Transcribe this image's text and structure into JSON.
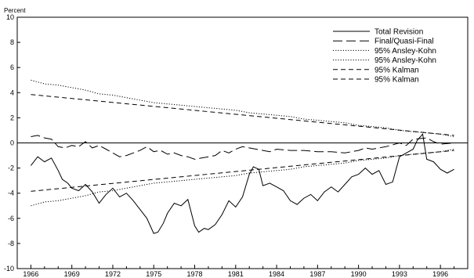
{
  "chart_data": {
    "type": "line",
    "ylabel": "Percent",
    "ylim": [
      -10,
      10
    ],
    "y_ticks": [
      10,
      8,
      6,
      4,
      2,
      0,
      -2,
      -4,
      -6,
      -8,
      -10
    ],
    "xlim": [
      1965,
      1998
    ],
    "x_tick_labels": [
      "1966",
      "1969",
      "1972",
      "1975",
      "1978",
      "1981",
      "1984",
      "1987",
      "1990",
      "1993",
      "1996"
    ],
    "x_tick_values": [
      1966,
      1969,
      1972,
      1975,
      1978,
      1981,
      1984,
      1987,
      1990,
      1993,
      1996
    ],
    "zero_line": true,
    "grid": false,
    "legend_position": "top-right",
    "series": [
      {
        "name": "Total Revision",
        "style": "solid",
        "points": [
          [
            1966,
            -1.8
          ],
          [
            1966.5,
            -1.1
          ],
          [
            1967,
            -1.5
          ],
          [
            1967.5,
            -1.2
          ],
          [
            1968,
            -2.2
          ],
          [
            1968.3,
            -2.9
          ],
          [
            1968.7,
            -3.2
          ],
          [
            1969,
            -3.6
          ],
          [
            1969.5,
            -3.8
          ],
          [
            1970,
            -3.3
          ],
          [
            1970.5,
            -3.9
          ],
          [
            1971,
            -4.8
          ],
          [
            1971.5,
            -4.1
          ],
          [
            1972,
            -3.6
          ],
          [
            1972.5,
            -4.3
          ],
          [
            1973,
            -4.0
          ],
          [
            1973.5,
            -4.6
          ],
          [
            1974,
            -5.3
          ],
          [
            1974.5,
            -6.0
          ],
          [
            1975,
            -7.2
          ],
          [
            1975.3,
            -7.1
          ],
          [
            1975.7,
            -6.4
          ],
          [
            1976,
            -5.6
          ],
          [
            1976.5,
            -4.8
          ],
          [
            1977,
            -5.0
          ],
          [
            1977.5,
            -4.5
          ],
          [
            1978,
            -6.6
          ],
          [
            1978.3,
            -7.1
          ],
          [
            1978.7,
            -6.8
          ],
          [
            1979,
            -6.9
          ],
          [
            1979.5,
            -6.5
          ],
          [
            1980,
            -5.7
          ],
          [
            1980.5,
            -4.6
          ],
          [
            1981,
            -5.1
          ],
          [
            1981.5,
            -4.3
          ],
          [
            1982,
            -2.5
          ],
          [
            1982.3,
            -1.9
          ],
          [
            1982.7,
            -2.1
          ],
          [
            1983,
            -3.4
          ],
          [
            1983.5,
            -3.2
          ],
          [
            1984,
            -3.5
          ],
          [
            1984.5,
            -3.8
          ],
          [
            1985,
            -4.6
          ],
          [
            1985.5,
            -4.9
          ],
          [
            1986,
            -4.4
          ],
          [
            1986.5,
            -4.1
          ],
          [
            1987,
            -4.6
          ],
          [
            1987.5,
            -3.9
          ],
          [
            1988,
            -3.5
          ],
          [
            1988.5,
            -3.9
          ],
          [
            1989,
            -3.3
          ],
          [
            1989.5,
            -2.7
          ],
          [
            1990,
            -2.5
          ],
          [
            1990.5,
            -2.0
          ],
          [
            1991,
            -2.5
          ],
          [
            1991.5,
            -2.2
          ],
          [
            1992,
            -3.3
          ],
          [
            1992.5,
            -3.1
          ],
          [
            1993,
            -1.1
          ],
          [
            1993.5,
            -0.8
          ],
          [
            1994,
            -0.5
          ],
          [
            1994.3,
            0.2
          ],
          [
            1994.7,
            0.7
          ],
          [
            1995,
            -1.3
          ],
          [
            1995.5,
            -1.5
          ],
          [
            1996,
            -2.1
          ],
          [
            1996.5,
            -2.4
          ],
          [
            1997,
            -2.1
          ]
        ]
      },
      {
        "name": "Final/Quasi-Final",
        "style": "long-dash",
        "points": [
          [
            1966,
            0.5
          ],
          [
            1966.5,
            0.6
          ],
          [
            1967,
            0.4
          ],
          [
            1967.5,
            0.3
          ],
          [
            1968,
            -0.3
          ],
          [
            1968.5,
            -0.4
          ],
          [
            1969,
            -0.2
          ],
          [
            1969.5,
            -0.3
          ],
          [
            1970,
            0.1
          ],
          [
            1970.5,
            -0.4
          ],
          [
            1971,
            -0.2
          ],
          [
            1971.5,
            -0.5
          ],
          [
            1972,
            -0.8
          ],
          [
            1972.5,
            -1.1
          ],
          [
            1973,
            -1.0
          ],
          [
            1973.5,
            -0.8
          ],
          [
            1974,
            -0.6
          ],
          [
            1974.5,
            -0.3
          ],
          [
            1975,
            -0.7
          ],
          [
            1975.5,
            -0.6
          ],
          [
            1976,
            -0.9
          ],
          [
            1976.5,
            -0.8
          ],
          [
            1977,
            -1.0
          ],
          [
            1977.5,
            -1.1
          ],
          [
            1978,
            -1.3
          ],
          [
            1978.5,
            -1.2
          ],
          [
            1979,
            -1.1
          ],
          [
            1979.5,
            -1.0
          ],
          [
            1980,
            -0.6
          ],
          [
            1980.5,
            -0.8
          ],
          [
            1981,
            -0.5
          ],
          [
            1981.5,
            -0.3
          ],
          [
            1982,
            -0.4
          ],
          [
            1982.5,
            -0.5
          ],
          [
            1983,
            -0.6
          ],
          [
            1983.5,
            -0.7
          ],
          [
            1984,
            -0.5
          ],
          [
            1985,
            -0.6
          ],
          [
            1986,
            -0.6
          ],
          [
            1987,
            -0.7
          ],
          [
            1988,
            -0.7
          ],
          [
            1989,
            -0.8
          ],
          [
            1990,
            -0.6
          ],
          [
            1990.5,
            -0.4
          ],
          [
            1991,
            -0.5
          ],
          [
            1992,
            -0.3
          ],
          [
            1993,
            0.0
          ],
          [
            1993.5,
            -0.2
          ],
          [
            1994,
            0.3
          ],
          [
            1995,
            0.4
          ],
          [
            1995.5,
            0.1
          ],
          [
            1996,
            -0.1
          ],
          [
            1997,
            0.0
          ]
        ]
      },
      {
        "name": "95% Ansley-Kohn",
        "style": "dotted",
        "points": [
          [
            1966,
            5.0
          ],
          [
            1967,
            4.7
          ],
          [
            1968,
            4.6
          ],
          [
            1969,
            4.4
          ],
          [
            1970,
            4.2
          ],
          [
            1971,
            3.9
          ],
          [
            1972,
            3.8
          ],
          [
            1973,
            3.6
          ],
          [
            1974,
            3.4
          ],
          [
            1975,
            3.2
          ],
          [
            1976,
            3.1
          ],
          [
            1977,
            3.0
          ],
          [
            1978,
            2.9
          ],
          [
            1979,
            2.8
          ],
          [
            1980,
            2.7
          ],
          [
            1981,
            2.6
          ],
          [
            1982,
            2.4
          ],
          [
            1983,
            2.3
          ],
          [
            1984,
            2.2
          ],
          [
            1985,
            2.1
          ],
          [
            1986,
            1.9
          ],
          [
            1987,
            1.8
          ],
          [
            1988,
            1.7
          ],
          [
            1989,
            1.6
          ],
          [
            1990,
            1.4
          ],
          [
            1991,
            1.3
          ],
          [
            1992,
            1.2
          ],
          [
            1993,
            1.0
          ],
          [
            1994,
            0.9
          ],
          [
            1995,
            0.8
          ],
          [
            1996,
            0.7
          ],
          [
            1997,
            0.5
          ]
        ]
      },
      {
        "name": "95% Ansley-Kohn",
        "style": "dotted",
        "points": [
          [
            1966,
            -5.0
          ],
          [
            1967,
            -4.7
          ],
          [
            1968,
            -4.6
          ],
          [
            1969,
            -4.4
          ],
          [
            1970,
            -4.2
          ],
          [
            1971,
            -3.9
          ],
          [
            1972,
            -3.8
          ],
          [
            1973,
            -3.6
          ],
          [
            1974,
            -3.4
          ],
          [
            1975,
            -3.2
          ],
          [
            1976,
            -3.1
          ],
          [
            1977,
            -3.0
          ],
          [
            1978,
            -2.9
          ],
          [
            1979,
            -2.8
          ],
          [
            1980,
            -2.7
          ],
          [
            1981,
            -2.6
          ],
          [
            1982,
            -2.4
          ],
          [
            1983,
            -2.3
          ],
          [
            1984,
            -2.2
          ],
          [
            1985,
            -2.1
          ],
          [
            1986,
            -1.9
          ],
          [
            1987,
            -1.8
          ],
          [
            1988,
            -1.7
          ],
          [
            1989,
            -1.6
          ],
          [
            1990,
            -1.4
          ],
          [
            1991,
            -1.3
          ],
          [
            1992,
            -1.2
          ],
          [
            1993,
            -1.0
          ],
          [
            1994,
            -0.9
          ],
          [
            1995,
            -0.8
          ],
          [
            1996,
            -0.7
          ],
          [
            1997,
            -0.5
          ]
        ]
      },
      {
        "name": "95% Kalman",
        "style": "short-dash",
        "points": [
          [
            1966,
            3.85
          ],
          [
            1997,
            0.6
          ]
        ]
      },
      {
        "name": "95% Kalman",
        "style": "short-dash",
        "points": [
          [
            1966,
            -3.85
          ],
          [
            1997,
            -0.6
          ]
        ]
      }
    ]
  }
}
